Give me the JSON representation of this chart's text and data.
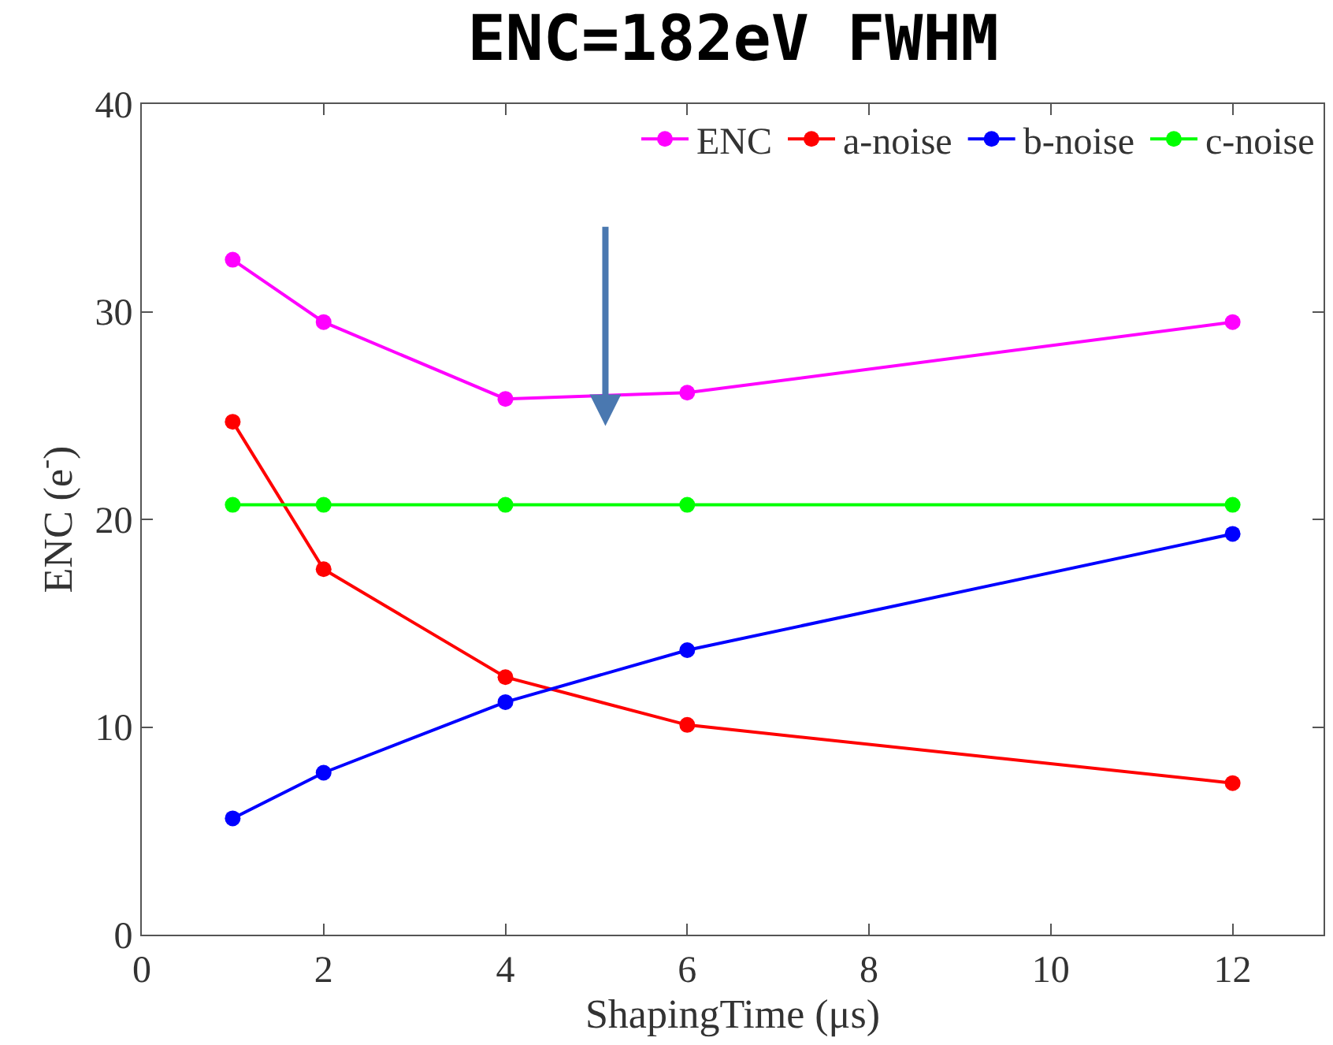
{
  "chart_data": {
    "type": "line",
    "title": "ENC=182eV FWHM",
    "xlabel": "ShapingTime (μs)",
    "ylabel": "ENC (e$^{-}$)",
    "x": [
      1,
      2,
      4,
      6,
      12
    ],
    "series": [
      {
        "name": "ENC",
        "color": "#ff00ff",
        "values": [
          32.5,
          29.5,
          25.8,
          26.1,
          29.5
        ]
      },
      {
        "name": "a-noise",
        "color": "#ff0000",
        "values": [
          24.7,
          17.6,
          12.4,
          10.1,
          7.3
        ]
      },
      {
        "name": "b-noise",
        "color": "#0000ff",
        "values": [
          5.6,
          7.8,
          11.2,
          13.7,
          19.3
        ]
      },
      {
        "name": "c-noise",
        "color": "#00ff00",
        "values": [
          20.7,
          20.7,
          20.7,
          20.7,
          20.7
        ]
      }
    ],
    "xlim": [
      0,
      13
    ],
    "xticks": [
      0,
      2,
      4,
      6,
      8,
      10,
      12
    ],
    "ylim": [
      0,
      40
    ],
    "yticks": [
      0,
      10,
      20,
      30,
      40
    ],
    "legend": "top right",
    "marker": "circle",
    "line_style": "solid"
  }
}
